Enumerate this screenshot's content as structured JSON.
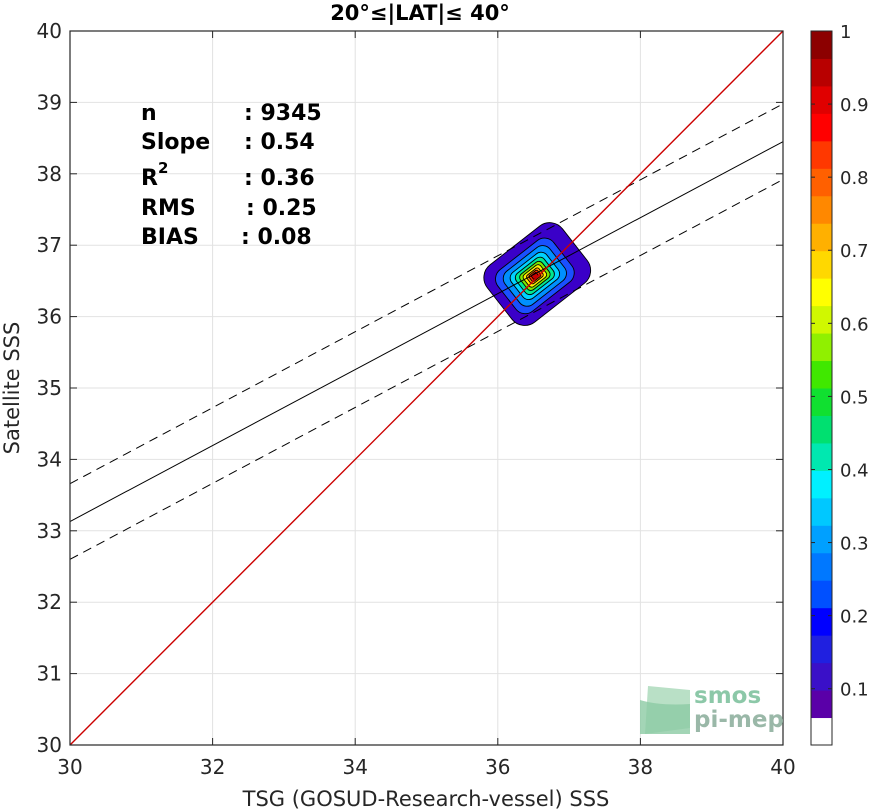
{
  "chart_data": {
    "type": "scatter",
    "title": "20°≤|LAT|≤ 40°",
    "xlabel": "TSG (GOSUD-Research-vessel) SSS",
    "ylabel": "Satellite SSS",
    "xlim": [
      30,
      40
    ],
    "ylim": [
      30,
      40
    ],
    "xticks": [
      30,
      32,
      34,
      36,
      38,
      40
    ],
    "yticks": [
      30,
      31,
      32,
      33,
      34,
      35,
      36,
      37,
      38,
      39,
      40
    ],
    "grid": true,
    "stats": {
      "n_label": "n",
      "n_value": ": 9345",
      "slope_label": "Slope",
      "slope_value": ": 0.54",
      "r2_label": "R",
      "r2_sup": "2",
      "r2_value": ": 0.36",
      "rms_label": "RMS",
      "rms_value": ": 0.25",
      "bias_label": "BIAS",
      "bias_value": ": 0.08"
    },
    "lines": {
      "identity": {
        "x": [
          30,
          40
        ],
        "y": [
          30,
          40
        ],
        "color": "#cc0000"
      },
      "regression": {
        "x": [
          30,
          40
        ],
        "y": [
          33.13,
          38.45
        ],
        "style": "solid",
        "color": "#000000"
      },
      "upper_bound": {
        "x": [
          30,
          40
        ],
        "y": [
          33.66,
          38.98
        ],
        "style": "dashed",
        "color": "#000000"
      },
      "lower_bound": {
        "x": [
          30,
          40
        ],
        "y": [
          32.6,
          37.92
        ],
        "style": "dashed",
        "color": "#000000"
      }
    },
    "density": {
      "center": [
        36.52,
        36.57
      ],
      "levels": [
        {
          "value": 0.05,
          "color": "#3a00c8",
          "rx": 0.62,
          "ry": 0.62
        },
        {
          "value": 0.15,
          "color": "#1a50ff",
          "rx": 0.46,
          "ry": 0.45
        },
        {
          "value": 0.25,
          "color": "#0090ff",
          "rx": 0.37,
          "ry": 0.36
        },
        {
          "value": 0.35,
          "color": "#00d2ff",
          "rx": 0.29,
          "ry": 0.28
        },
        {
          "value": 0.45,
          "color": "#00e890",
          "rx": 0.23,
          "ry": 0.22
        },
        {
          "value": 0.55,
          "color": "#7de800",
          "rx": 0.18,
          "ry": 0.17
        },
        {
          "value": 0.65,
          "color": "#fff000",
          "rx": 0.14,
          "ry": 0.13
        },
        {
          "value": 0.75,
          "color": "#ff9800",
          "rx": 0.1,
          "ry": 0.09
        },
        {
          "value": 0.85,
          "color": "#ff3000",
          "rx": 0.07,
          "ry": 0.065
        },
        {
          "value": 0.95,
          "color": "#c80000",
          "rx": 0.04,
          "ry": 0.04
        }
      ]
    },
    "colorbar": {
      "ticks": [
        "0.1",
        "0.2",
        "0.3",
        "0.4",
        "0.5",
        "0.6",
        "0.7",
        "0.8",
        "0.9",
        "1"
      ],
      "tick_values": [
        0.1,
        0.2,
        0.3,
        0.4,
        0.5,
        0.6,
        0.7,
        0.8,
        0.9,
        1.0
      ],
      "colors": [
        "#ffffff",
        "#5a00a8",
        "#3a10c8",
        "#2020e0",
        "#0000ff",
        "#0050ff",
        "#0078ff",
        "#00a0ff",
        "#00c8ff",
        "#00f0ff",
        "#00e8b0",
        "#00e070",
        "#10e030",
        "#40e800",
        "#90f000",
        "#d0f800",
        "#ffff00",
        "#ffd800",
        "#ffb000",
        "#ff8800",
        "#ff6000",
        "#ff3800",
        "#ff0000",
        "#e00000",
        "#b80000",
        "#8c0000"
      ]
    }
  },
  "logo": {
    "line1": "smos",
    "line2": "pi-mep",
    "color": "#7fbf9a"
  }
}
